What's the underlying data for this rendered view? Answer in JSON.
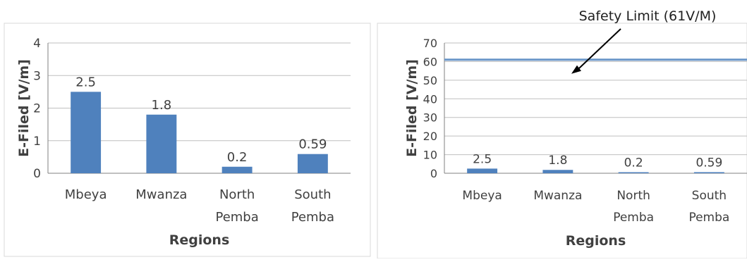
{
  "chart_data": [
    {
      "type": "bar",
      "categories": [
        [
          "Mbeya"
        ],
        [
          "Mwanza"
        ],
        [
          "North",
          "Pemba"
        ],
        [
          "South",
          "Pemba"
        ]
      ],
      "values": [
        2.5,
        1.8,
        0.2,
        0.59
      ],
      "data_labels": [
        "2.5",
        "1.8",
        "0.2",
        "0.59"
      ],
      "xlabel": "Regions",
      "ylabel": "E-Filed [V/m]",
      "ylim": [
        0,
        4
      ],
      "yticks": [
        0,
        1,
        2,
        3,
        4
      ],
      "grid": true,
      "bar_color": "#4f81bd"
    },
    {
      "type": "bar",
      "categories": [
        [
          "Mbeya"
        ],
        [
          "Mwanza"
        ],
        [
          "North",
          "Pemba"
        ],
        [
          "South",
          "Pemba"
        ]
      ],
      "values": [
        2.5,
        1.8,
        0.2,
        0.59
      ],
      "data_labels": [
        "2.5",
        "1.8",
        "0.2",
        "0.59"
      ],
      "xlabel": "Regions",
      "ylabel": "E-Filed [V/m]",
      "ylim": [
        0,
        70
      ],
      "yticks": [
        0,
        10,
        20,
        30,
        40,
        50,
        60,
        70
      ],
      "grid": true,
      "bar_color": "#4f81bd",
      "reference_line": {
        "value": 61,
        "label": "Safety Limit (61V/M)",
        "color": "#6a96c8"
      }
    }
  ]
}
